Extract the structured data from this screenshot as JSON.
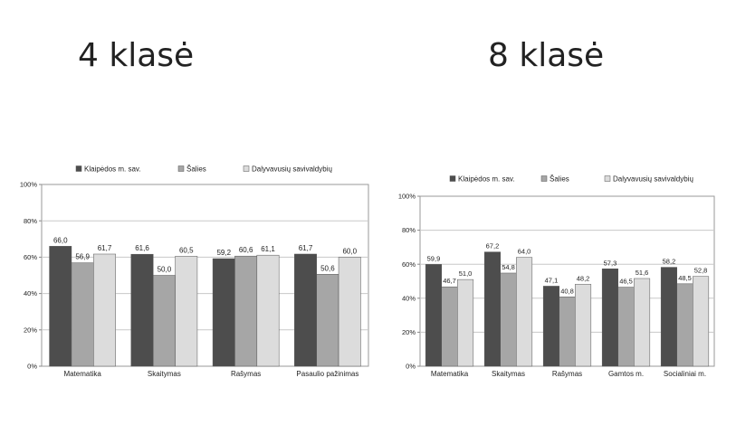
{
  "headings": {
    "grade4": "4 klasė",
    "grade8": "8 klasė"
  },
  "colors": {
    "series1": "#4d4d4d",
    "series2": "#a6a6a6",
    "series3": "#dcdcdc",
    "axis": "#888888",
    "grid": "#c8c8c8",
    "border": "#9a9a9a"
  },
  "chart_data": [
    {
      "type": "bar",
      "categories": [
        "Matematika",
        "Skaitymas",
        "Rašymas",
        "Pasaulio pažinimas"
      ],
      "series": [
        {
          "name": "Klaipėdos m. sav.",
          "values": [
            66.0,
            61.6,
            59.2,
            61.7
          ],
          "labels": [
            "66,0",
            "61,6",
            "59,2",
            "61,7"
          ]
        },
        {
          "name": "Šalies",
          "values": [
            56.9,
            50.0,
            60.6,
            50.6
          ],
          "labels": [
            "56,9",
            "50,0",
            "60,6",
            "50,6"
          ]
        },
        {
          "name": "Dalyvavusių savivaldybių",
          "values": [
            61.7,
            60.5,
            61.1,
            60.0
          ],
          "labels": [
            "61,7",
            "60,5",
            "61,1",
            "60,0"
          ]
        }
      ],
      "yticks": [
        "0%",
        "20%",
        "40%",
        "60%",
        "80%",
        "100%"
      ],
      "ylim": [
        0,
        100
      ],
      "legend": "top",
      "grid": true
    },
    {
      "type": "bar",
      "categories": [
        "Matematika",
        "Skaitymas",
        "Rašymas",
        "Gamtos m.",
        "Socialiniai m."
      ],
      "series": [
        {
          "name": "Klaipėdos m. sav.",
          "values": [
            59.9,
            67.2,
            47.1,
            57.3,
            58.2
          ],
          "labels": [
            "59,9",
            "67,2",
            "47,1",
            "57,3",
            "58,2"
          ]
        },
        {
          "name": "Šalies",
          "values": [
            46.7,
            54.8,
            40.8,
            46.5,
            48.5
          ],
          "labels": [
            "46,7",
            "54,8",
            "40,8",
            "46,5",
            "48,5"
          ]
        },
        {
          "name": "Dalyvavusių savivaldybių",
          "values": [
            51.0,
            64.0,
            48.2,
            51.6,
            52.8
          ],
          "labels": [
            "51,0",
            "64,0",
            "48,2",
            "51,6",
            "52,8"
          ]
        }
      ],
      "yticks": [
        "0%",
        "20%",
        "40%",
        "60%",
        "80%",
        "100%"
      ],
      "ylim": [
        0,
        100
      ],
      "legend": "top",
      "grid": true
    }
  ]
}
